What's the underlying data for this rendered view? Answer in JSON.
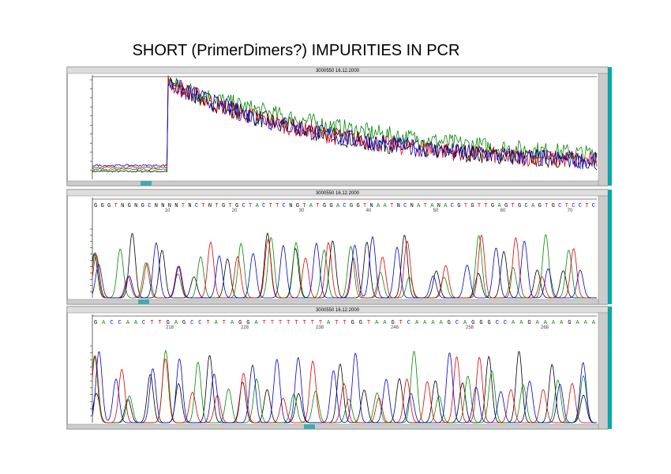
{
  "title": "SHORT (PrimerDimers?) IMPURITIES IN PCR",
  "windows": [
    {
      "caption": "3000550 16.12.2000"
    },
    {
      "caption": "3000550 16.12.2000",
      "sequence": "GGGTNGNGCNNNNTNCTNTGTGCTACTTCNGTATGGACGGTNAATNCNATANACGTGTTGAGTGCAGTGCTCCTC",
      "positions": [
        "10",
        "20",
        "30",
        "40",
        "50",
        "60",
        "70"
      ]
    },
    {
      "caption": "3000550 16.12.2000",
      "sequence": "GACCAACTTGAGCCTATAGGATTTTTTTTATTGGTAAGTCAAAAGCAGGGCCAAGAAAAGAAA",
      "positions": [
        "218",
        "228",
        "238",
        "248",
        "258",
        "268"
      ]
    }
  ]
}
